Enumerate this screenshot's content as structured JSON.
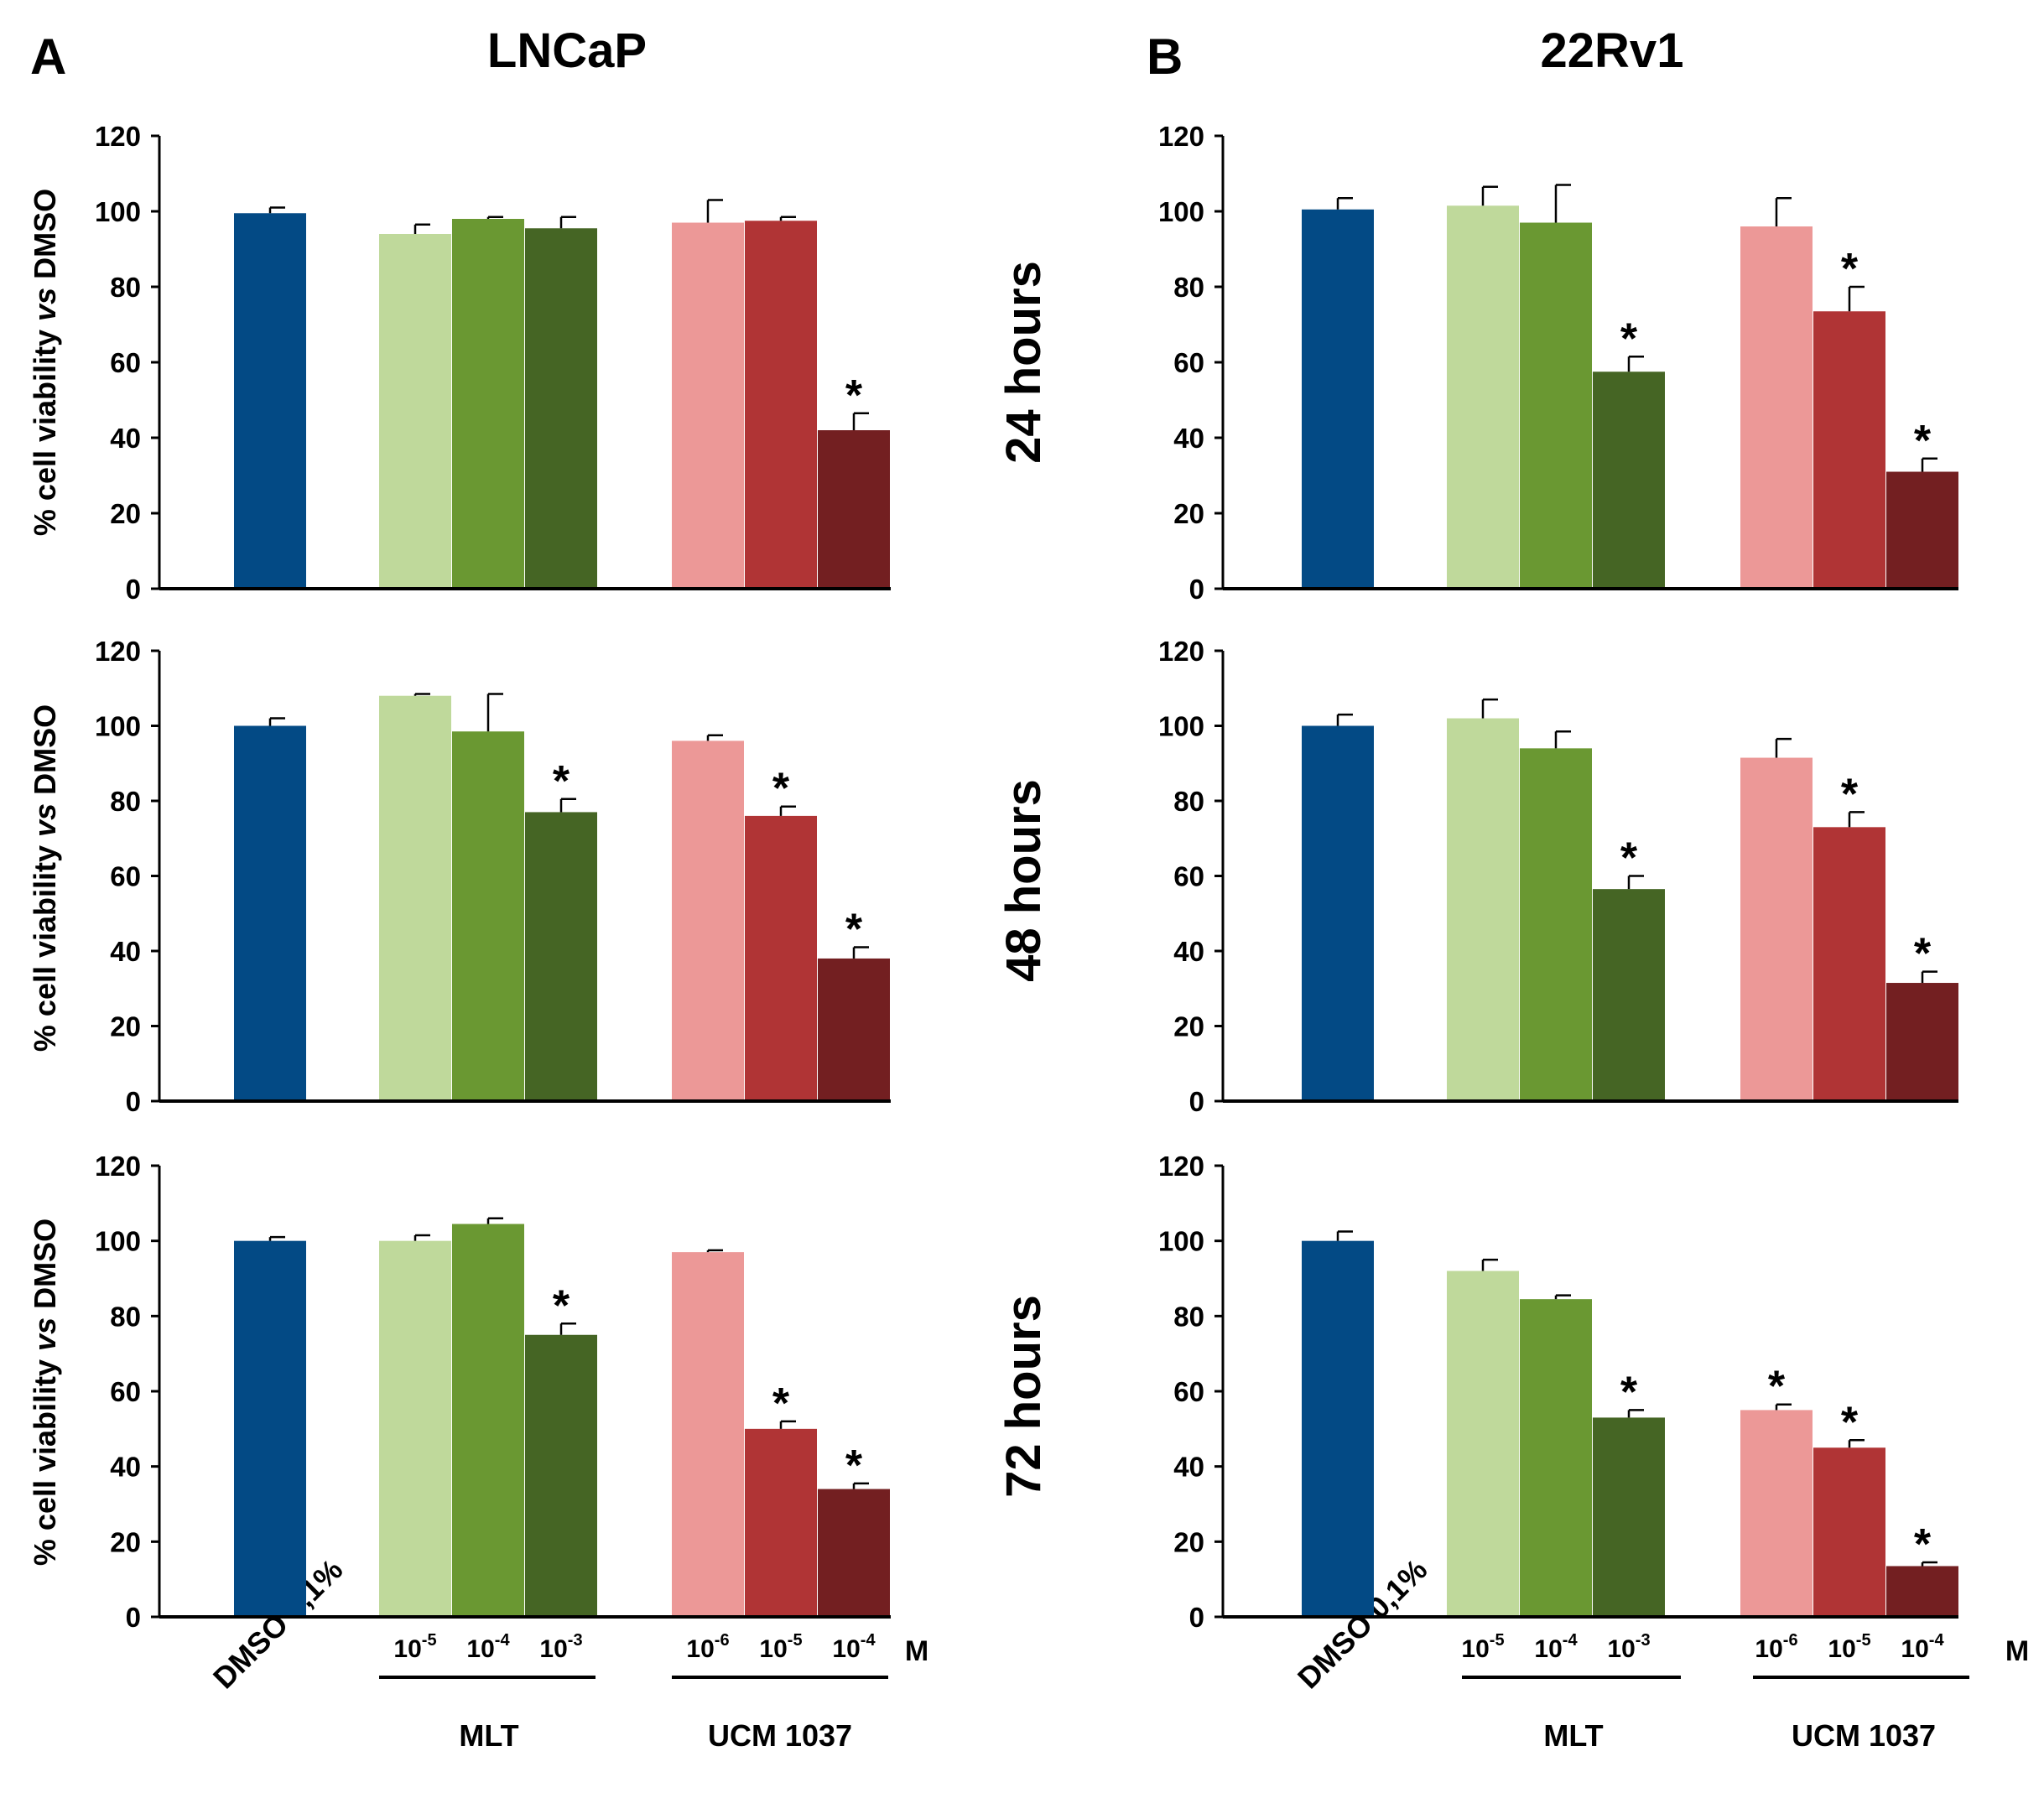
{
  "panels": [
    {
      "letter": "A",
      "title": "LNCaP"
    },
    {
      "letter": "B",
      "title": "22Rv1"
    }
  ],
  "row_labels": [
    "24 hours",
    "48 hours",
    "72 hours"
  ],
  "ylabel": {
    "part1": "% cell viability ",
    "part2": "vs",
    "part3": " DMSO"
  },
  "control_label": "DMSO 0,1%",
  "group_labels": [
    "MLT",
    "UCM 1037"
  ],
  "unit_label": "M",
  "conc_labels": [
    {
      "base": "10",
      "exp": "-5"
    },
    {
      "base": "10",
      "exp": "-4"
    },
    {
      "base": "10",
      "exp": "-3"
    },
    {
      "base": "10",
      "exp": "-6"
    },
    {
      "base": "10",
      "exp": "-5"
    },
    {
      "base": "10",
      "exp": "-4"
    }
  ],
  "colors": {
    "control": "#034a85",
    "mlt_low": "#bfd99b",
    "mlt_mid": "#6a9832",
    "mlt_high": "#456524",
    "ucm_low": "#ec9897",
    "ucm_mid": "#b03435",
    "ucm_high": "#731f21"
  },
  "chart_data": [
    {
      "type": "bar",
      "panel": "A",
      "row": "24 hours",
      "ylim": [
        0,
        120
      ],
      "yticks": [
        0,
        20,
        40,
        60,
        80,
        100,
        120
      ],
      "categories": [
        "DMSO 0,1%",
        "MLT 10-5",
        "MLT 10-4",
        "MLT 10-3",
        "UCM 1037 10-6",
        "UCM 1037 10-5",
        "UCM 1037 10-4"
      ],
      "values": [
        99.5,
        94,
        98,
        95.5,
        97,
        97.5,
        42
      ],
      "errors": [
        1.5,
        2.5,
        0.5,
        3,
        6,
        1,
        4.5
      ],
      "significant": [
        false,
        false,
        false,
        false,
        false,
        false,
        true
      ]
    },
    {
      "type": "bar",
      "panel": "A",
      "row": "48 hours",
      "ylim": [
        0,
        120
      ],
      "yticks": [
        0,
        20,
        40,
        60,
        80,
        100,
        120
      ],
      "categories": [
        "DMSO 0,1%",
        "MLT 10-5",
        "MLT 10-4",
        "MLT 10-3",
        "UCM 1037 10-6",
        "UCM 1037 10-5",
        "UCM 1037 10-4"
      ],
      "values": [
        100,
        108,
        98.5,
        77,
        96,
        76,
        38
      ],
      "errors": [
        2,
        0.5,
        10,
        3.5,
        1.5,
        2.5,
        3
      ],
      "significant": [
        false,
        false,
        false,
        true,
        false,
        true,
        true
      ]
    },
    {
      "type": "bar",
      "panel": "A",
      "row": "72 hours",
      "ylim": [
        0,
        120
      ],
      "yticks": [
        0,
        20,
        40,
        60,
        80,
        100,
        120
      ],
      "categories": [
        "DMSO 0,1%",
        "MLT 10-5",
        "MLT 10-4",
        "MLT 10-3",
        "UCM 1037 10-6",
        "UCM 1037 10-5",
        "UCM 1037 10-4"
      ],
      "values": [
        100,
        100,
        104.5,
        75,
        97,
        50,
        34
      ],
      "errors": [
        1,
        1.5,
        1.5,
        3,
        0.5,
        2,
        1.5
      ],
      "significant": [
        false,
        false,
        false,
        true,
        false,
        true,
        true
      ]
    },
    {
      "type": "bar",
      "panel": "B",
      "row": "24 hours",
      "ylim": [
        0,
        120
      ],
      "yticks": [
        0,
        20,
        40,
        60,
        80,
        100,
        120
      ],
      "categories": [
        "DMSO 0,1%",
        "MLT 10-5",
        "MLT 10-4",
        "MLT 10-3",
        "UCM 1037 10-6",
        "UCM 1037 10-5",
        "UCM 1037 10-4"
      ],
      "values": [
        100.5,
        101.5,
        97,
        57.5,
        96,
        73.5,
        31
      ],
      "errors": [
        3,
        5,
        10,
        4,
        7.5,
        6.5,
        3.5
      ],
      "significant": [
        false,
        false,
        false,
        true,
        false,
        true,
        true
      ]
    },
    {
      "type": "bar",
      "panel": "B",
      "row": "48 hours",
      "ylim": [
        0,
        120
      ],
      "yticks": [
        0,
        20,
        40,
        60,
        80,
        100,
        120
      ],
      "categories": [
        "DMSO 0,1%",
        "MLT 10-5",
        "MLT 10-4",
        "MLT 10-3",
        "UCM 1037 10-6",
        "UCM 1037 10-5",
        "UCM 1037 10-4"
      ],
      "values": [
        100,
        102,
        94,
        56.5,
        91.5,
        73,
        31.5
      ],
      "errors": [
        3,
        5,
        4.5,
        3.5,
        5,
        4,
        3
      ],
      "significant": [
        false,
        false,
        false,
        true,
        false,
        true,
        true
      ]
    },
    {
      "type": "bar",
      "panel": "B",
      "row": "72 hours",
      "ylim": [
        0,
        120
      ],
      "yticks": [
        0,
        20,
        40,
        60,
        80,
        100,
        120
      ],
      "categories": [
        "DMSO 0,1%",
        "MLT 10-5",
        "MLT 10-4",
        "MLT 10-3",
        "UCM 1037 10-6",
        "UCM 1037 10-5",
        "UCM 1037 10-4"
      ],
      "values": [
        100,
        92,
        84.5,
        53,
        55,
        45,
        13.5
      ],
      "errors": [
        2.5,
        3,
        1,
        2,
        1.5,
        2,
        1
      ],
      "significant": [
        false,
        false,
        false,
        true,
        true,
        true,
        true
      ]
    }
  ]
}
